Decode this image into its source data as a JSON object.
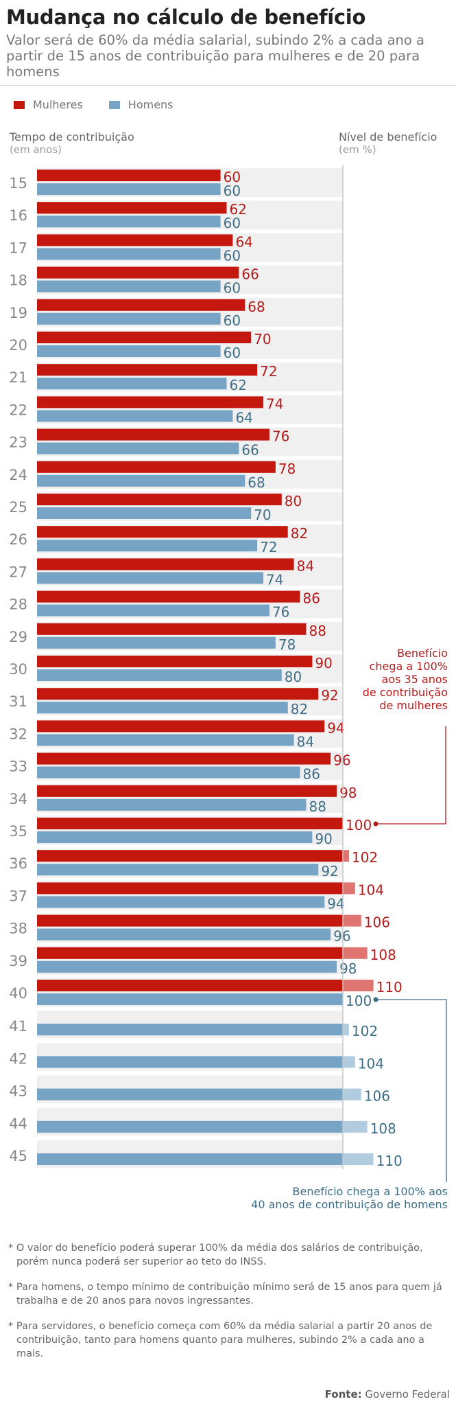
{
  "header": {
    "title": "Mudança no cálculo de benefício",
    "subtitle": "Valor será de 60% da média salarial, subindo 2% a cada ano a partir de 15 anos de contribuição para mulheres e de 20 para homens"
  },
  "legend": {
    "women": "Mulheres",
    "men": "Homens"
  },
  "axis": {
    "left_title": "Tempo de contribuição",
    "left_sub": "(em anos)",
    "right_title": "Nível de benefício",
    "right_sub": "(em %)"
  },
  "colors": {
    "women": "#c4180e",
    "women_over": "#e07470",
    "women_label": "#b31b1b",
    "men": "#77a3c4",
    "men_over": "#b1cbdf",
    "men_label": "#3e6e86",
    "row_bg": "#f0f0f0",
    "ref_line": "#c8c8c8"
  },
  "callouts": {
    "women": [
      "Benefício",
      "chega a 100%",
      "aos 35 anos",
      "de contribuição",
      "de mulheres"
    ],
    "men": [
      "Benefício chega a 100% aos",
      "40 anos de contribuição de homens"
    ]
  },
  "notes": [
    "* O valor do benefício poderá superar 100% da média dos salários de contribuição, porém nunca poderá ser superior ao teto do INSS.",
    "* Para homens, o tempo mínimo de contribuição mínimo será de 15 anos para quem já trabalha e de 20 anos para novos ingressantes.",
    "* Para servidores, o benefício começa com 60% da média salarial a partir 20 anos de contribuição, tanto para homens quanto para mulheres, subindo 2% a cada ano a mais."
  ],
  "source": {
    "label": "Fonte:",
    "value": "Governo Federal"
  },
  "chart_data": {
    "type": "bar",
    "orientation": "horizontal",
    "title": "Mudança no cálculo de benefício",
    "xlabel": "Nível de benefício (em %)",
    "ylabel": "Tempo de contribuição (em anos)",
    "reference_line": 100,
    "categories": [
      15,
      16,
      17,
      18,
      19,
      20,
      21,
      22,
      23,
      24,
      25,
      26,
      27,
      28,
      29,
      30,
      31,
      32,
      33,
      34,
      35,
      36,
      37,
      38,
      39,
      40,
      41,
      42,
      43,
      44,
      45
    ],
    "series": [
      {
        "name": "Mulheres",
        "values": [
          60,
          62,
          64,
          66,
          68,
          70,
          72,
          74,
          76,
          78,
          80,
          82,
          84,
          86,
          88,
          90,
          92,
          94,
          96,
          98,
          100,
          102,
          104,
          106,
          108,
          110,
          null,
          null,
          null,
          null,
          null
        ]
      },
      {
        "name": "Homens",
        "values": [
          60,
          60,
          60,
          60,
          60,
          60,
          62,
          64,
          66,
          68,
          70,
          72,
          74,
          76,
          78,
          80,
          82,
          84,
          86,
          88,
          90,
          92,
          94,
          96,
          98,
          100,
          102,
          104,
          106,
          108,
          110
        ]
      }
    ],
    "annotations": [
      {
        "series": "Mulheres",
        "category": 35,
        "text": "Benefício chega a 100% aos 35 anos de contribuição de mulheres"
      },
      {
        "series": "Homens",
        "category": 40,
        "text": "Benefício chega a 100% aos 40 anos de contribuição de homens"
      }
    ]
  }
}
